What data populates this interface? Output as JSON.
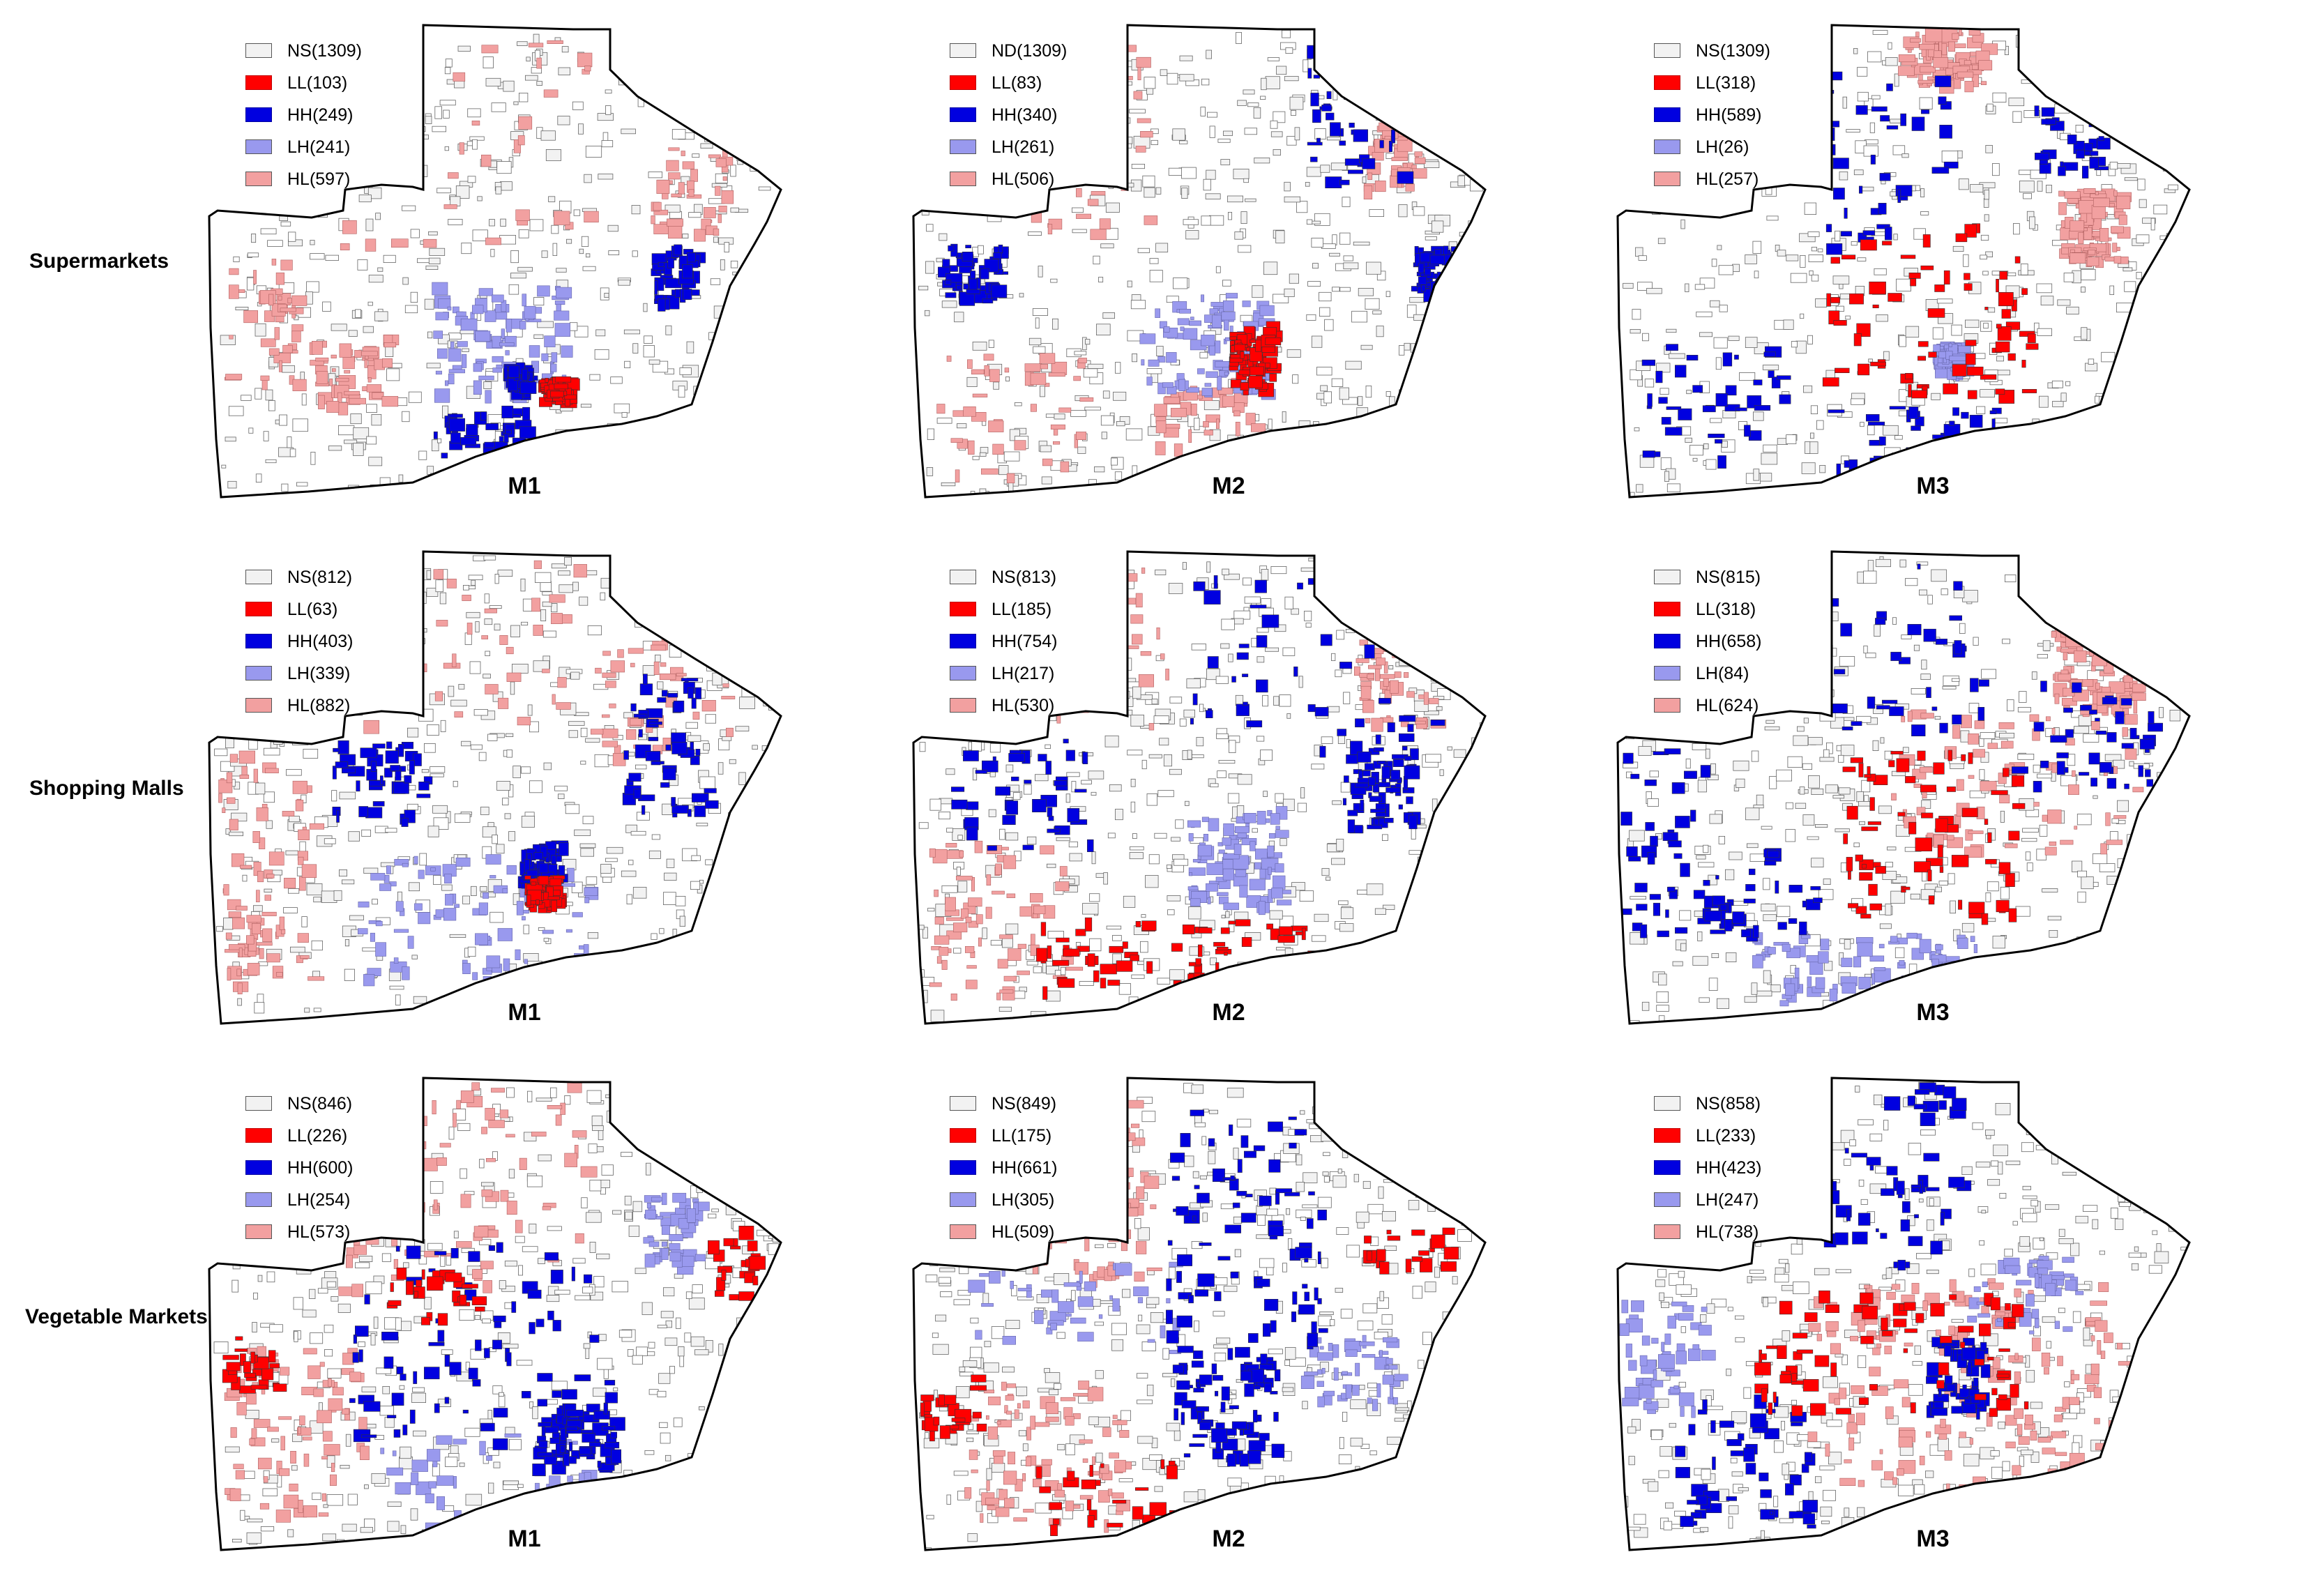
{
  "colors": {
    "NS": "#f2f2f2",
    "LL": "#ff0000",
    "HH": "#0000e0",
    "LH": "#9999ee",
    "HL": "#f2a0a0"
  },
  "rows": [
    {
      "label": "Supermarkets",
      "panels": [
        {
          "caption": "M1",
          "legend": [
            {
              "key": "NS",
              "text": "NS(1309)"
            },
            {
              "key": "LL",
              "text": "LL(103)"
            },
            {
              "key": "HH",
              "text": "HH(249)"
            },
            {
              "key": "LH",
              "text": "LH(241)"
            },
            {
              "key": "HL",
              "text": "HL(597)"
            }
          ]
        },
        {
          "caption": "M2",
          "legend": [
            {
              "key": "NS",
              "text": "ND(1309)"
            },
            {
              "key": "LL",
              "text": "LL(83)"
            },
            {
              "key": "HH",
              "text": "HH(340)"
            },
            {
              "key": "LH",
              "text": "LH(261)"
            },
            {
              "key": "HL",
              "text": "HL(506)"
            }
          ]
        },
        {
          "caption": "M3",
          "legend": [
            {
              "key": "NS",
              "text": "NS(1309)"
            },
            {
              "key": "LL",
              "text": "LL(318)"
            },
            {
              "key": "HH",
              "text": "HH(589)"
            },
            {
              "key": "LH",
              "text": "LH(26)"
            },
            {
              "key": "HL",
              "text": "HL(257)"
            }
          ]
        }
      ]
    },
    {
      "label": "Shopping Malls",
      "panels": [
        {
          "caption": "M1",
          "legend": [
            {
              "key": "NS",
              "text": "NS(812)"
            },
            {
              "key": "LL",
              "text": "LL(63)"
            },
            {
              "key": "HH",
              "text": "HH(403)"
            },
            {
              "key": "LH",
              "text": "LH(339)"
            },
            {
              "key": "HL",
              "text": "HL(882)"
            }
          ]
        },
        {
          "caption": "M2",
          "legend": [
            {
              "key": "NS",
              "text": "NS(813)"
            },
            {
              "key": "LL",
              "text": "LL(185)"
            },
            {
              "key": "HH",
              "text": "HH(754)"
            },
            {
              "key": "LH",
              "text": "LH(217)"
            },
            {
              "key": "HL",
              "text": "HL(530)"
            }
          ]
        },
        {
          "caption": "M3",
          "legend": [
            {
              "key": "NS",
              "text": "NS(815)"
            },
            {
              "key": "LL",
              "text": "LL(318)"
            },
            {
              "key": "HH",
              "text": "HH(658)"
            },
            {
              "key": "LH",
              "text": "LH(84)"
            },
            {
              "key": "HL",
              "text": "HL(624)"
            }
          ]
        }
      ]
    },
    {
      "label": "Vegetable Markets",
      "panels": [
        {
          "caption": "M1",
          "legend": [
            {
              "key": "NS",
              "text": "NS(846)"
            },
            {
              "key": "LL",
              "text": "LL(226)"
            },
            {
              "key": "HH",
              "text": "HH(600)"
            },
            {
              "key": "LH",
              "text": "LH(254)"
            },
            {
              "key": "HL",
              "text": "HL(573)"
            }
          ]
        },
        {
          "caption": "M2",
          "legend": [
            {
              "key": "NS",
              "text": "NS(849)"
            },
            {
              "key": "LL",
              "text": "LL(175)"
            },
            {
              "key": "HH",
              "text": "HH(661)"
            },
            {
              "key": "LH",
              "text": "LH(305)"
            },
            {
              "key": "HL",
              "text": "HL(509)"
            }
          ]
        },
        {
          "caption": "M3",
          "legend": [
            {
              "key": "NS",
              "text": "NS(858)"
            },
            {
              "key": "LL",
              "text": "LL(233)"
            },
            {
              "key": "HH",
              "text": "HH(423)"
            },
            {
              "key": "LH",
              "text": "LH(247)"
            },
            {
              "key": "HL",
              "text": "HL(738)"
            }
          ]
        }
      ]
    }
  ]
}
